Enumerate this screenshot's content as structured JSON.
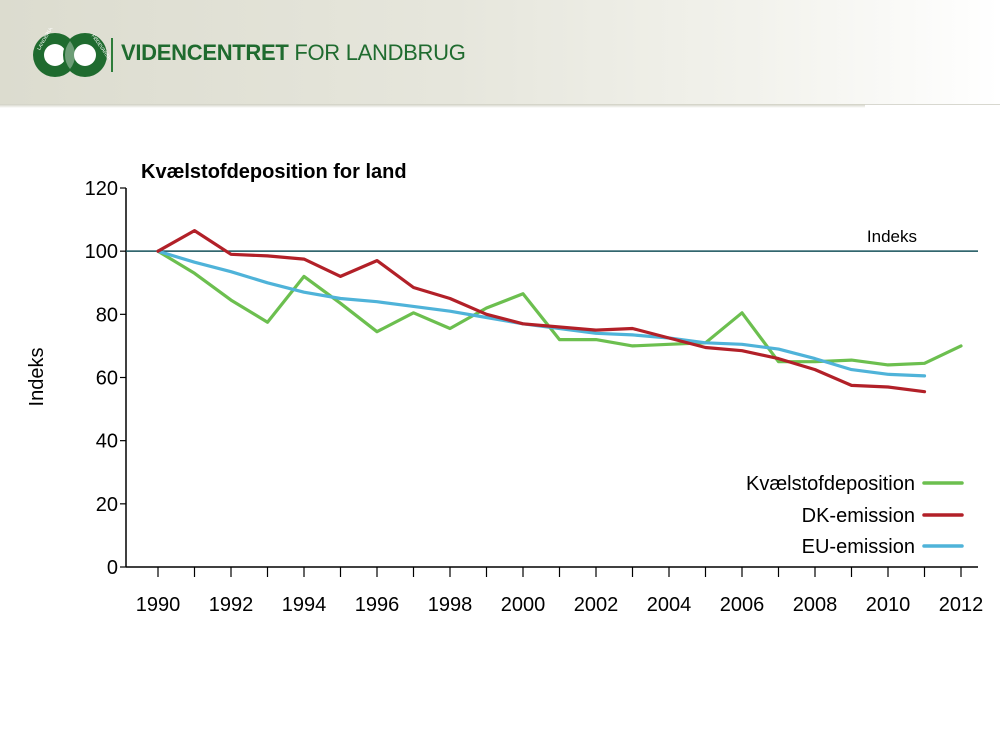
{
  "header": {
    "org_name_bold": "VIDENCENTRET",
    "org_name_light": "FOR LANDBRUG",
    "logo_ring_left": "LANDBRUG",
    "logo_ring_right": "FØDEVARER"
  },
  "colors": {
    "brand_green": "#1f6b2f",
    "deposition": "#6cbf4f",
    "dk_emission": "#b22028",
    "eu_emission": "#4fb3d9",
    "reference_line": "#14505a"
  },
  "chart_data": {
    "type": "line",
    "title": "Kvælstofdeposition for land",
    "xlabel": "",
    "ylabel": "Indeks",
    "xlim": [
      1990,
      2012
    ],
    "ylim": [
      0,
      120
    ],
    "yticks": [
      0,
      20,
      40,
      60,
      80,
      100,
      120
    ],
    "xtick_labels": [
      "1990",
      "1992",
      "1994",
      "1996",
      "1998",
      "2000",
      "2002",
      "2004",
      "2006",
      "2008",
      "2010",
      "2012"
    ],
    "reference_line": {
      "y": 100,
      "label": "Indeks"
    },
    "legend_position": "bottom-right",
    "series": [
      {
        "name": "Kvælstofdeposition",
        "color": "#6cbf4f",
        "x": [
          1990,
          1991,
          1992,
          1993,
          1994,
          1995,
          1996,
          1997,
          1998,
          1999,
          2000,
          2001,
          2002,
          2003,
          2004,
          2005,
          2006,
          2007,
          2008,
          2009,
          2010,
          2011,
          2012
        ],
        "values": [
          100,
          93,
          84.5,
          77.5,
          92,
          83.5,
          74.5,
          80.5,
          75.5,
          82,
          86.5,
          72,
          72,
          70,
          70.5,
          71,
          80.5,
          65,
          65,
          65.5,
          64,
          64.5,
          70
        ]
      },
      {
        "name": "DK-emission",
        "color": "#b22028",
        "x": [
          1990,
          1991,
          1992,
          1993,
          1994,
          1995,
          1996,
          1997,
          1998,
          1999,
          2000,
          2001,
          2002,
          2003,
          2004,
          2005,
          2006,
          2007,
          2008,
          2009,
          2010,
          2011
        ],
        "values": [
          100,
          106.5,
          99,
          98.5,
          97.5,
          92,
          97,
          88.5,
          85,
          80,
          77,
          76,
          75,
          75.5,
          72.5,
          69.5,
          68.5,
          66,
          62.5,
          57.5,
          57,
          55.5
        ]
      },
      {
        "name": "EU-emission",
        "color": "#4fb3d9",
        "x": [
          1990,
          1991,
          1992,
          1993,
          1994,
          1995,
          1996,
          1997,
          1998,
          1999,
          2000,
          2001,
          2002,
          2003,
          2004,
          2005,
          2006,
          2007,
          2008,
          2009,
          2010,
          2011
        ],
        "values": [
          100,
          96.5,
          93.5,
          90,
          87,
          85,
          84,
          82.5,
          81,
          79,
          77,
          75.5,
          74,
          73.5,
          72.5,
          71,
          70.5,
          69,
          66,
          62.5,
          61,
          60.5
        ]
      }
    ]
  }
}
